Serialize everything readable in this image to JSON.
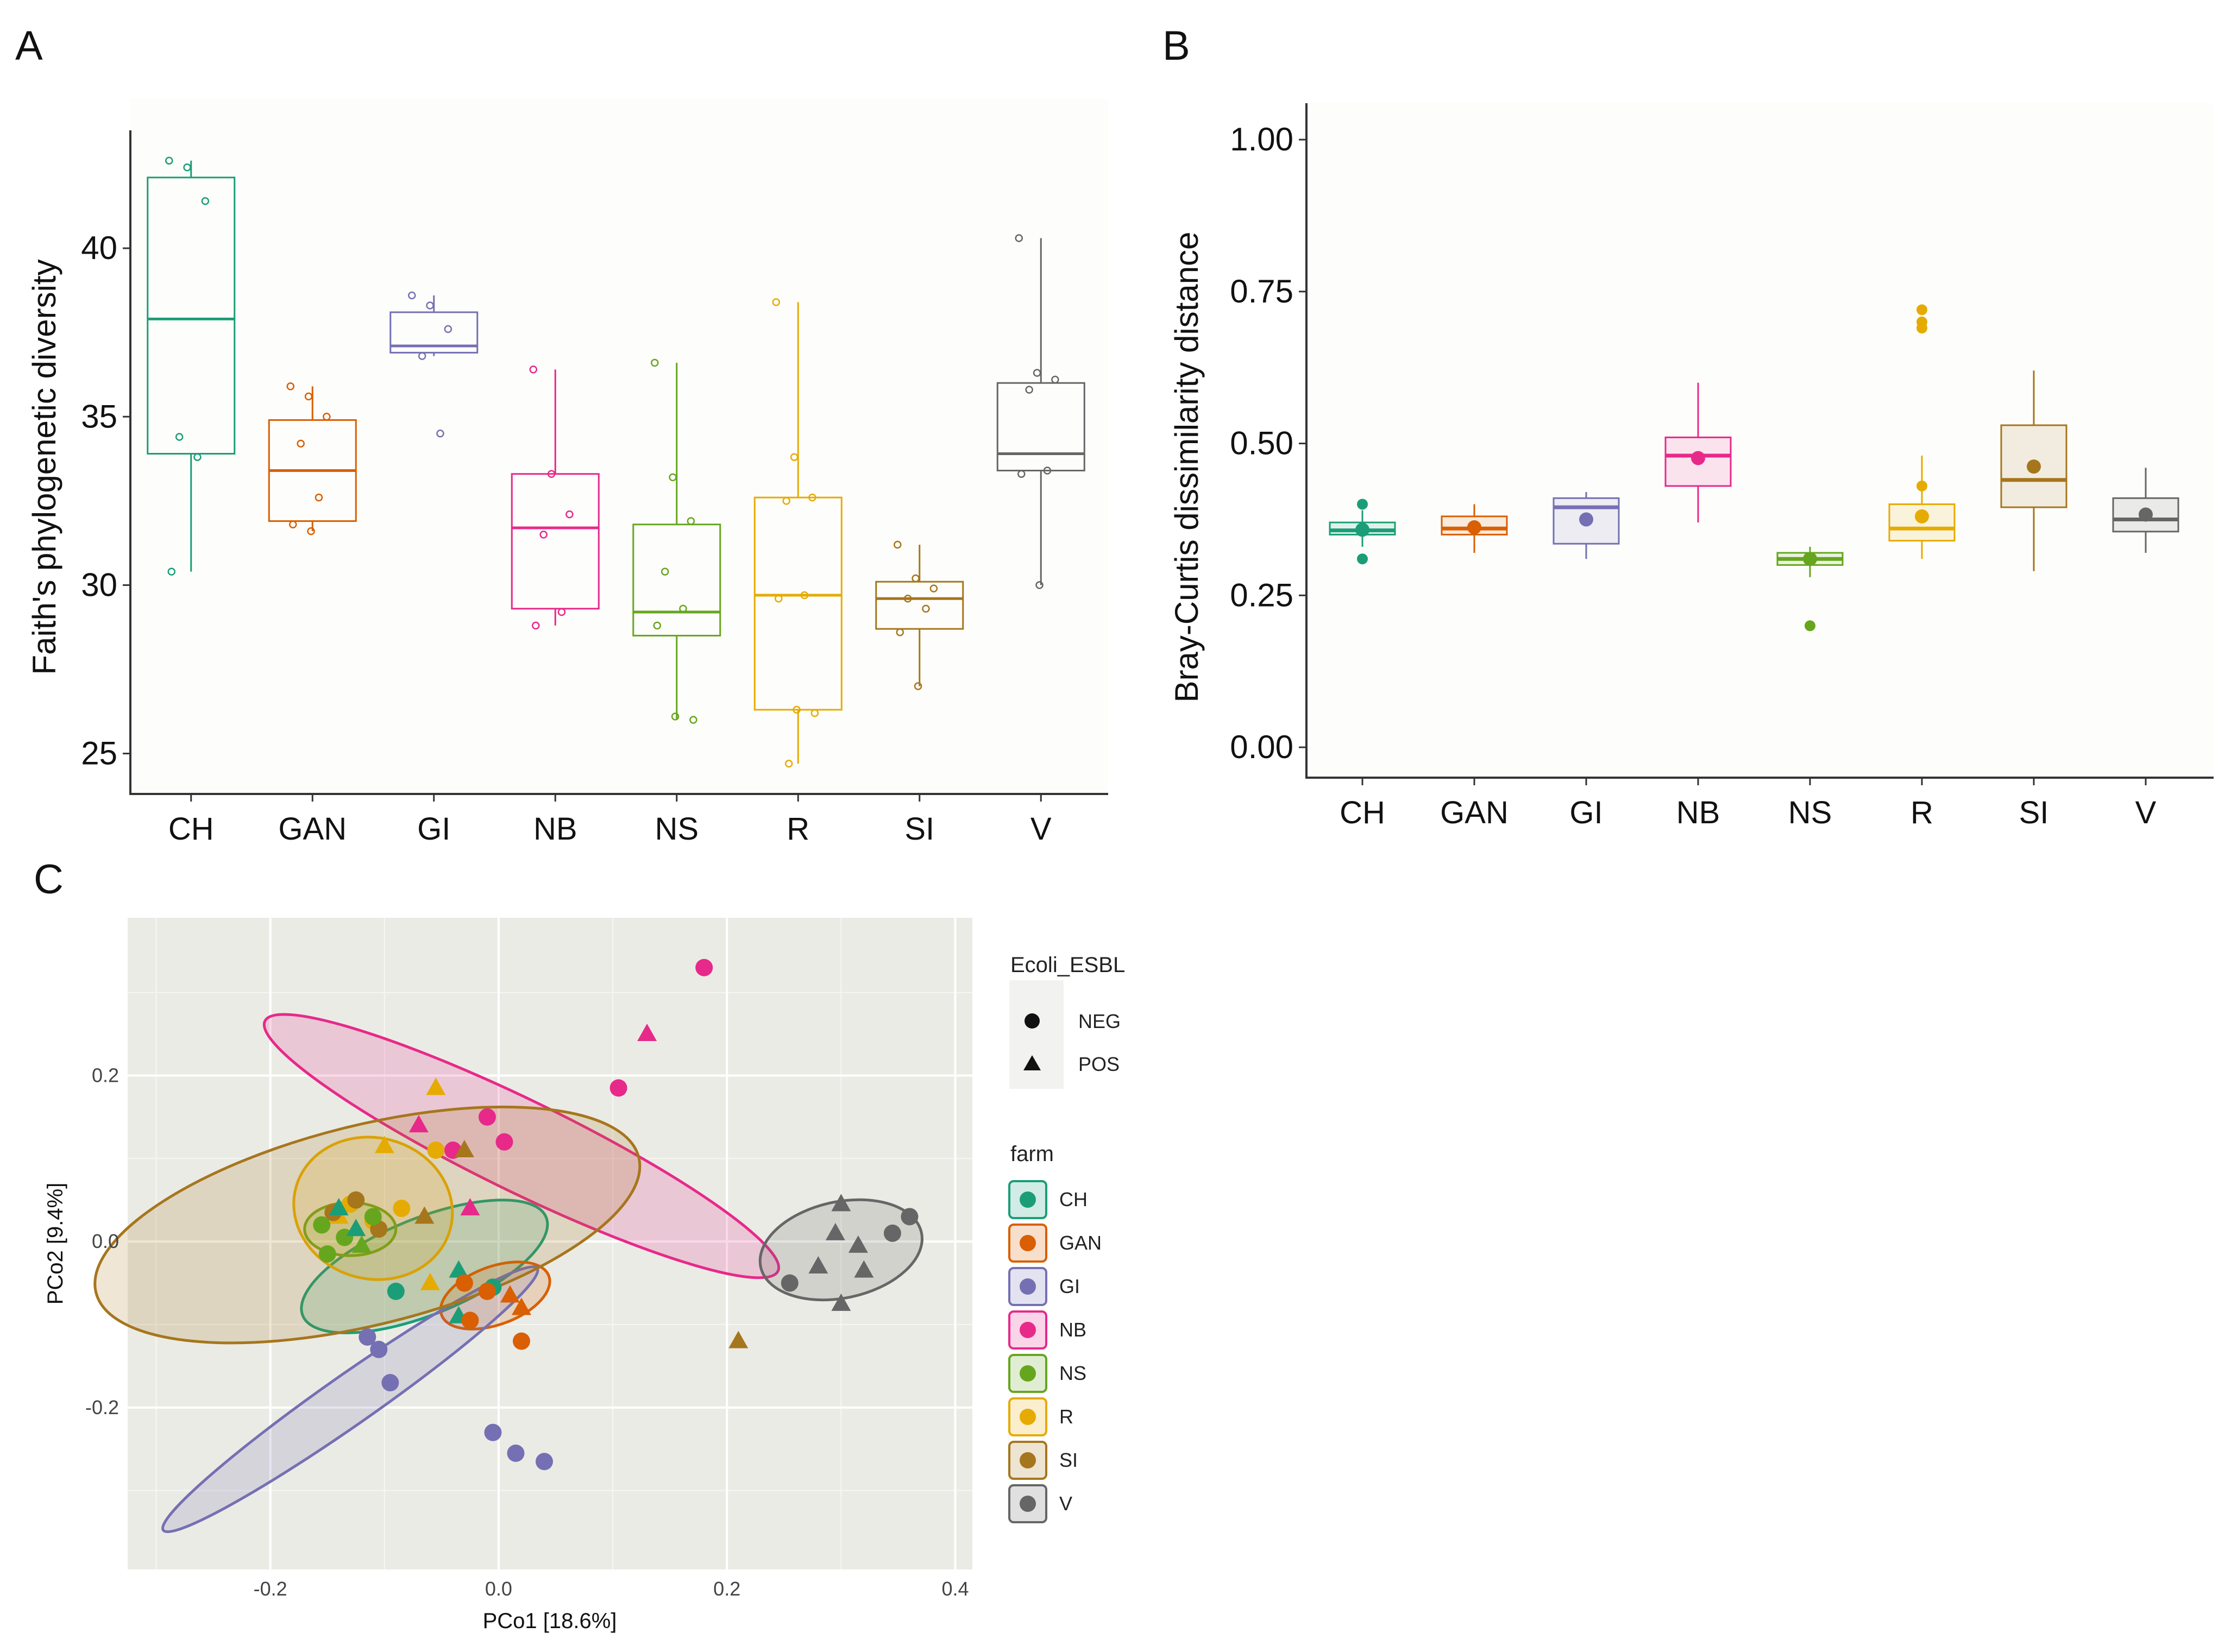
{
  "panels": {
    "a": "A",
    "b": "B",
    "c": "C"
  },
  "chart_data": [
    {
      "id": "A",
      "type": "box",
      "ylabel": "Faith's phylogenetic diversity",
      "ylim": [
        23.8,
        43.5
      ],
      "yticks": [
        25,
        30,
        35,
        40
      ],
      "categories": [
        "CH",
        "GAN",
        "GI",
        "NB",
        "NS",
        "R",
        "SI",
        "V"
      ],
      "colors": [
        "#1b9e77",
        "#d95f02",
        "#7570b3",
        "#e7298a",
        "#66a61e",
        "#e6ab02",
        "#a6761d",
        "#666666"
      ],
      "boxes": [
        {
          "min": 30.4,
          "q1": 33.9,
          "median": 37.9,
          "q3": 42.1,
          "max": 42.6
        },
        {
          "min": 31.6,
          "q1": 31.9,
          "median": 33.4,
          "q3": 34.9,
          "max": 35.9
        },
        {
          "min": 36.8,
          "q1": 36.9,
          "median": 37.1,
          "q3": 38.1,
          "max": 38.6
        },
        {
          "min": 28.8,
          "q1": 29.3,
          "median": 31.7,
          "q3": 33.3,
          "max": 36.4
        },
        {
          "min": 26.0,
          "q1": 28.5,
          "median": 29.2,
          "q3": 31.8,
          "max": 36.6
        },
        {
          "min": 24.7,
          "q1": 26.3,
          "median": 29.7,
          "q3": 32.6,
          "max": 38.4
        },
        {
          "min": 27.0,
          "q1": 28.7,
          "median": 29.6,
          "q3": 30.1,
          "max": 31.2
        },
        {
          "min": 30.0,
          "q1": 33.4,
          "median": 33.9,
          "q3": 36.0,
          "max": 40.3
        }
      ],
      "points": [
        [
          42.6,
          42.4,
          41.4,
          34.4,
          33.8,
          30.4
        ],
        [
          35.9,
          35.6,
          35.0,
          34.2,
          32.6,
          31.8,
          31.6
        ],
        [
          38.6,
          38.3,
          37.6,
          36.8,
          34.5
        ],
        [
          36.4,
          33.3,
          32.1,
          31.5,
          29.2,
          28.8
        ],
        [
          36.6,
          33.2,
          31.9,
          30.4,
          29.3,
          28.8,
          26.1,
          26.0
        ],
        [
          38.4,
          33.8,
          32.6,
          32.5,
          29.7,
          29.6,
          26.3,
          26.2,
          24.7
        ],
        [
          31.2,
          30.2,
          29.9,
          29.6,
          29.3,
          28.6,
          27.0
        ],
        [
          40.3,
          36.3,
          36.1,
          35.8,
          33.4,
          33.3,
          30.0
        ]
      ]
    },
    {
      "id": "B",
      "type": "box",
      "ylabel": "Bray-Curtis dissimilarity distance",
      "ylim": [
        -0.05,
        1.06
      ],
      "yticks": [
        "0.00",
        "0.25",
        "0.50",
        "0.75",
        "1.00"
      ],
      "categories": [
        "CH",
        "GAN",
        "GI",
        "NB",
        "NS",
        "R",
        "SI",
        "V"
      ],
      "colors": [
        "#1b9e77",
        "#d95f02",
        "#7570b3",
        "#e7298a",
        "#66a61e",
        "#e6ab02",
        "#a6761d",
        "#666666"
      ],
      "boxes": [
        {
          "min": 0.33,
          "q1": 0.35,
          "median": 0.357,
          "q3": 0.37,
          "max": 0.39,
          "mean": 0.358
        },
        {
          "min": 0.32,
          "q1": 0.35,
          "median": 0.36,
          "q3": 0.38,
          "max": 0.4,
          "mean": 0.362
        },
        {
          "min": 0.31,
          "q1": 0.335,
          "median": 0.395,
          "q3": 0.41,
          "max": 0.42,
          "mean": 0.375
        },
        {
          "min": 0.37,
          "q1": 0.43,
          "median": 0.48,
          "q3": 0.51,
          "max": 0.6,
          "mean": 0.476
        },
        {
          "min": 0.28,
          "q1": 0.3,
          "median": 0.31,
          "q3": 0.32,
          "max": 0.33,
          "mean": 0.31
        },
        {
          "min": 0.31,
          "q1": 0.34,
          "median": 0.36,
          "q3": 0.4,
          "max": 0.48,
          "mean": 0.38
        },
        {
          "min": 0.29,
          "q1": 0.395,
          "median": 0.44,
          "q3": 0.53,
          "max": 0.62,
          "mean": 0.462
        },
        {
          "min": 0.32,
          "q1": 0.355,
          "median": 0.375,
          "q3": 0.41,
          "max": 0.46,
          "mean": 0.383
        }
      ],
      "outliers": [
        [
          0.4,
          0.31
        ],
        [],
        [],
        [],
        [
          0.2
        ],
        [
          0.72,
          0.7,
          0.69,
          0.43
        ],
        [],
        []
      ]
    },
    {
      "id": "C",
      "type": "scatter",
      "xlabel": "PCo1 [18.6%]",
      "ylabel": "PCo2 [9.4%]",
      "xlim": [
        -0.325,
        0.415
      ],
      "ylim": [
        -0.395,
        0.39
      ],
      "xticks": [
        "-0.2",
        "0.0",
        "0.2",
        "0.4"
      ],
      "yticks": [
        "-0.2",
        "0.0",
        "0.2"
      ],
      "legend_shape": {
        "title": "Ecoli_ESBL",
        "items": [
          "NEG",
          "POS"
        ]
      },
      "legend_farm": {
        "title": "farm",
        "items": [
          "CH",
          "GAN",
          "GI",
          "NB",
          "NS",
          "R",
          "SI",
          "V"
        ]
      },
      "colors": [
        "#1b9e77",
        "#d95f02",
        "#7570b3",
        "#e7298a",
        "#66a61e",
        "#e6ab02",
        "#a6761d",
        "#666666"
      ],
      "ellipses": [
        {
          "group": "CH",
          "cx": -0.065,
          "cy": -0.03,
          "rx": 0.115,
          "ry": 0.058,
          "angle": -22
        },
        {
          "group": "GAN",
          "cx": -0.003,
          "cy": -0.065,
          "rx": 0.05,
          "ry": 0.035,
          "angle": -20
        },
        {
          "group": "GI",
          "cx": -0.13,
          "cy": -0.19,
          "rx": 0.2,
          "ry": 0.03,
          "angle": -35
        },
        {
          "group": "NB",
          "cx": 0.02,
          "cy": 0.115,
          "rx": 0.25,
          "ry": 0.055,
          "angle": 26
        },
        {
          "group": "NS",
          "cx": -0.13,
          "cy": 0.015,
          "rx": 0.04,
          "ry": 0.032,
          "angle": 0
        },
        {
          "group": "R",
          "cx": -0.11,
          "cy": 0.04,
          "rx": 0.07,
          "ry": 0.085,
          "angle": 15
        },
        {
          "group": "SI",
          "cx": -0.115,
          "cy": 0.02,
          "rx": 0.245,
          "ry": 0.12,
          "angle": -14
        },
        {
          "group": "V",
          "cx": 0.3,
          "cy": -0.01,
          "rx": 0.072,
          "ry": 0.058,
          "angle": -12
        }
      ],
      "points": [
        {
          "x": 0.18,
          "y": 0.33,
          "g": 3,
          "s": 0
        },
        {
          "x": 0.13,
          "y": 0.25,
          "g": 3,
          "s": 1
        },
        {
          "x": 0.105,
          "y": 0.185,
          "g": 3,
          "s": 0
        },
        {
          "x": -0.01,
          "y": 0.15,
          "g": 3,
          "s": 0
        },
        {
          "x": 0.005,
          "y": 0.12,
          "g": 3,
          "s": 0
        },
        {
          "x": -0.04,
          "y": 0.11,
          "g": 3,
          "s": 0
        },
        {
          "x": -0.07,
          "y": 0.14,
          "g": 3,
          "s": 1
        },
        {
          "x": -0.025,
          "y": 0.04,
          "g": 3,
          "s": 1
        },
        {
          "x": -0.055,
          "y": 0.11,
          "g": 5,
          "s": 0
        },
        {
          "x": -0.055,
          "y": 0.185,
          "g": 5,
          "s": 1
        },
        {
          "x": -0.1,
          "y": 0.115,
          "g": 5,
          "s": 1
        },
        {
          "x": -0.085,
          "y": 0.04,
          "g": 5,
          "s": 0
        },
        {
          "x": -0.13,
          "y": 0.045,
          "g": 5,
          "s": 0
        },
        {
          "x": -0.14,
          "y": 0.03,
          "g": 5,
          "s": 1
        },
        {
          "x": -0.11,
          "y": 0.025,
          "g": 5,
          "s": 0
        },
        {
          "x": -0.06,
          "y": -0.05,
          "g": 5,
          "s": 1
        },
        {
          "x": -0.03,
          "y": 0.11,
          "g": 6,
          "s": 1
        },
        {
          "x": -0.065,
          "y": 0.03,
          "g": 6,
          "s": 1
        },
        {
          "x": -0.125,
          "y": 0.05,
          "g": 6,
          "s": 0
        },
        {
          "x": -0.145,
          "y": 0.035,
          "g": 6,
          "s": 0
        },
        {
          "x": -0.105,
          "y": 0.015,
          "g": 6,
          "s": 0
        },
        {
          "x": 0.21,
          "y": -0.12,
          "g": 6,
          "s": 1
        },
        {
          "x": -0.155,
          "y": 0.02,
          "g": 4,
          "s": 0
        },
        {
          "x": -0.15,
          "y": -0.015,
          "g": 4,
          "s": 0
        },
        {
          "x": -0.135,
          "y": 0.005,
          "g": 4,
          "s": 0
        },
        {
          "x": -0.12,
          "y": -0.005,
          "g": 4,
          "s": 1
        },
        {
          "x": -0.11,
          "y": 0.03,
          "g": 4,
          "s": 0
        },
        {
          "x": -0.14,
          "y": 0.04,
          "g": 0,
          "s": 1
        },
        {
          "x": -0.125,
          "y": 0.015,
          "g": 0,
          "s": 1
        },
        {
          "x": -0.09,
          "y": -0.06,
          "g": 0,
          "s": 0
        },
        {
          "x": -0.035,
          "y": -0.035,
          "g": 0,
          "s": 1
        },
        {
          "x": -0.035,
          "y": -0.09,
          "g": 0,
          "s": 1
        },
        {
          "x": -0.005,
          "y": -0.055,
          "g": 0,
          "s": 0
        },
        {
          "x": -0.03,
          "y": -0.05,
          "g": 1,
          "s": 0
        },
        {
          "x": -0.025,
          "y": -0.095,
          "g": 1,
          "s": 0
        },
        {
          "x": 0.01,
          "y": -0.065,
          "g": 1,
          "s": 1
        },
        {
          "x": 0.02,
          "y": -0.08,
          "g": 1,
          "s": 1
        },
        {
          "x": 0.02,
          "y": -0.12,
          "g": 1,
          "s": 0
        },
        {
          "x": -0.01,
          "y": -0.06,
          "g": 1,
          "s": 0
        },
        {
          "x": -0.115,
          "y": -0.115,
          "g": 2,
          "s": 0
        },
        {
          "x": -0.105,
          "y": -0.13,
          "g": 2,
          "s": 0
        },
        {
          "x": -0.095,
          "y": -0.17,
          "g": 2,
          "s": 0
        },
        {
          "x": -0.005,
          "y": -0.23,
          "g": 2,
          "s": 0
        },
        {
          "x": 0.015,
          "y": -0.255,
          "g": 2,
          "s": 0
        },
        {
          "x": 0.04,
          "y": -0.265,
          "g": 2,
          "s": 0
        },
        {
          "x": 0.36,
          "y": 0.03,
          "g": 7,
          "s": 0
        },
        {
          "x": 0.345,
          "y": 0.01,
          "g": 7,
          "s": 0
        },
        {
          "x": 0.3,
          "y": 0.045,
          "g": 7,
          "s": 1
        },
        {
          "x": 0.295,
          "y": 0.01,
          "g": 7,
          "s": 1
        },
        {
          "x": 0.315,
          "y": -0.005,
          "g": 7,
          "s": 1
        },
        {
          "x": 0.28,
          "y": -0.03,
          "g": 7,
          "s": 1
        },
        {
          "x": 0.32,
          "y": -0.035,
          "g": 7,
          "s": 1
        },
        {
          "x": 0.255,
          "y": -0.05,
          "g": 7,
          "s": 0
        },
        {
          "x": 0.3,
          "y": -0.075,
          "g": 7,
          "s": 1
        }
      ]
    }
  ]
}
